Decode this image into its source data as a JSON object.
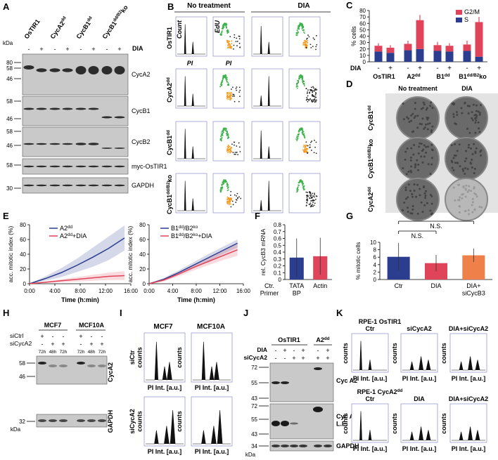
{
  "panels": {
    "a": {
      "letter": "A",
      "kda": "kDa",
      "dia": "DIA",
      "lanes": [
        "OsTIR1",
        {
          "parts": [
            "CycA2",
            "dd"
          ]
        },
        {
          "parts": [
            "CycB1",
            "dd"
          ]
        },
        {
          "parts": [
            "CycB1",
            "dd/B2",
            "ko"
          ]
        }
      ],
      "signs": [
        "-",
        "+",
        "-",
        "+",
        "-",
        "+",
        "-",
        "+"
      ],
      "blots": [
        {
          "label": "CycA2",
          "markers": [
            80,
            58,
            46
          ]
        },
        {
          "label": "CycB1",
          "markers": [
            58,
            46
          ]
        },
        {
          "label": "CycB2",
          "markers": [
            58,
            46
          ]
        },
        {
          "label": "myc-OsTIR1",
          "markers": [
            58
          ]
        },
        {
          "label": "GAPDH",
          "markers": [
            30
          ]
        }
      ]
    },
    "b": {
      "letter": "B",
      "columns": [
        "No treatment",
        "DIA"
      ],
      "rows": [
        "OsTIR1",
        {
          "parts": [
            "CycA2",
            "dd"
          ]
        },
        {
          "parts": [
            "CycB1",
            "dd"
          ]
        },
        {
          "parts": [
            "CycB1",
            "dd/B2",
            "ko"
          ]
        }
      ],
      "axes": [
        "Count",
        "EdU",
        "PI",
        "PI"
      ]
    },
    "d": {
      "letter": "D",
      "columns": [
        "No treatment",
        "DIA"
      ],
      "rows": [
        {
          "parts": [
            "CycB1",
            "dd"
          ]
        },
        {
          "parts": [
            "CycB1",
            "dd/B2",
            "ko"
          ]
        },
        {
          "parts": [
            "CycA2",
            "dd"
          ]
        }
      ]
    },
    "h": {
      "letter": "H",
      "groups": [
        "MCF7",
        "MCF10A"
      ],
      "rows": [
        "siCtrl",
        "siCycA2"
      ],
      "sictrl": [
        "+",
        "-",
        "-",
        "+",
        "-",
        "-"
      ],
      "sicyca2": [
        "-",
        "+",
        "+",
        "-",
        "+",
        "+"
      ],
      "times": [
        "72h",
        "48h",
        "72h",
        "72h",
        "48h",
        "72h"
      ],
      "markers": [
        58,
        46,
        32
      ],
      "kda": "kDa",
      "labels": [
        "CycA2",
        "GAPDH"
      ]
    },
    "i": {
      "letter": "I",
      "columns": [
        "MCF7",
        "MCF10A"
      ],
      "ylabels": [
        [
          "siCtr",
          "counts"
        ],
        "counts",
        [
          "siCycA2",
          "counts"
        ],
        "counts"
      ],
      "xlabels": [
        "PI Int. [a.u.]",
        "PI Int. [a.u.]",
        "PI Int. [a.u.]",
        "PI Int. [a.u.]"
      ]
    },
    "j": {
      "letter": "J",
      "groups": [
        "OsTIR1",
        {
          "parts": [
            "A2",
            "dd"
          ]
        }
      ],
      "rows": [
        "DIA",
        "siCycA2"
      ],
      "dia": [
        "-",
        "+",
        "-",
        "+",
        "-",
        "+"
      ],
      "sicyca2": [
        "-",
        "-",
        "+",
        "+",
        "+",
        "+"
      ],
      "markers": [
        72,
        55,
        43,
        72,
        55,
        43,
        34
      ],
      "kda": "kDa",
      "labels": [
        "Cyc A2",
        [
          "Cyc A2",
          "L.E."
        ],
        "GAPDH"
      ]
    },
    "k": {
      "letter": "K",
      "rows": [
        "RPE-1 OsTIR1",
        {
          "parts": [
            "RPE-1 CycA2",
            "dd"
          ]
        }
      ],
      "columns": [
        [
          "Ctr",
          "siCycA2",
          "DIA+siCycA2"
        ],
        [
          "Ctr",
          "DIA",
          "DIA+siCycA2"
        ]
      ],
      "ylabel": "counts",
      "xlabel": "PI Int. [a.u.]"
    }
  },
  "chart_data": [
    {
      "type": "bar",
      "stacked": true,
      "letter": "C",
      "ylabel": "% cells",
      "category_label": "DIA",
      "categories": [
        "-",
        "+",
        "-",
        "+",
        "-",
        "+",
        "-",
        "+"
      ],
      "groups": [
        "OsTIR1",
        {
          "parts": [
            "A2",
            "dd"
          ]
        },
        {
          "parts": [
            "B1",
            "dd"
          ]
        },
        {
          "parts": [
            "B1",
            "dd/B2",
            "ko"
          ]
        }
      ],
      "series": [
        {
          "name": "S",
          "color": "#2a3d8f",
          "values": [
            16,
            14,
            18,
            20,
            17,
            16,
            17,
            8
          ]
        },
        {
          "name": "G2/M",
          "color": "#e0445a",
          "values": [
            9,
            8,
            10,
            45,
            9,
            9,
            10,
            54
          ],
          "errors": [
            4,
            4,
            5,
            8,
            5,
            4,
            6,
            8
          ]
        }
      ],
      "ylim": [
        0,
        80
      ],
      "yticks": [
        0,
        10,
        20,
        30,
        40,
        50,
        60,
        70,
        80
      ],
      "legend": "top-right"
    },
    {
      "type": "line",
      "letter": "E",
      "ylabel": "acc. mitotic index (%)",
      "xlabel": "Time (h:min)",
      "x": [
        0,
        150,
        300,
        450,
        600,
        750,
        900
      ],
      "xlim": [
        0,
        960
      ],
      "xticks": [
        {
          "value": 0,
          "label": "0:00"
        },
        {
          "value": 240,
          "label": "4:00"
        },
        {
          "value": 480,
          "label": "8:00"
        },
        {
          "value": 720,
          "label": "12:00"
        },
        {
          "value": 960,
          "label": "16:00"
        }
      ],
      "ylim": [
        0,
        80
      ],
      "yticks": [
        0,
        20,
        40,
        60,
        80
      ],
      "series": [
        {
          "name": {
            "parts": [
              "A2",
              "dd"
            ]
          },
          "color": "#2a3d8f",
          "values": [
            0,
            7,
            15,
            25,
            36,
            48,
            62
          ],
          "lower": [
            0,
            4,
            9,
            16,
            23,
            32,
            45
          ],
          "upper": [
            0,
            10,
            21,
            34,
            49,
            64,
            79
          ]
        },
        {
          "name": {
            "parts": [
              "A2",
              "dd",
              "+DIA"
            ]
          },
          "color": "#e0445a",
          "values": [
            0,
            2,
            4,
            6,
            8,
            10,
            11
          ],
          "lower": [
            0,
            1,
            2,
            3,
            4,
            5,
            5
          ],
          "upper": [
            0,
            3,
            6,
            9,
            12,
            15,
            17
          ]
        }
      ]
    },
    {
      "type": "line",
      "ylabel": "acc. mitotic index (%)",
      "xlabel": "Time (h:min)",
      "x": [
        0,
        150,
        300,
        450,
        600,
        750,
        900
      ],
      "xlim": [
        0,
        960
      ],
      "xticks": [
        {
          "value": 0,
          "label": "0:00"
        },
        {
          "value": 240,
          "label": "4:00"
        },
        {
          "value": 480,
          "label": "8:00"
        },
        {
          "value": 720,
          "label": "12:00"
        },
        {
          "value": 960,
          "label": "16:00"
        }
      ],
      "ylim": [
        0,
        80
      ],
      "yticks": [
        0,
        20,
        40,
        60,
        80
      ],
      "series": [
        {
          "name": {
            "parts": [
              "B1",
              "dd",
              "/B2",
              "ko"
            ]
          },
          "color": "#2a3d8f",
          "values": [
            0,
            6,
            15,
            25,
            35,
            45,
            55
          ],
          "lower": [
            0,
            4,
            12,
            21,
            30,
            40,
            49
          ],
          "upper": [
            0,
            8,
            18,
            29,
            40,
            50,
            60
          ]
        },
        {
          "name": {
            "parts": [
              "B1",
              "dd",
              "/B2",
              "ko",
              "+DIA"
            ]
          },
          "color": "#e0445a",
          "values": [
            0,
            5,
            13,
            22,
            30,
            38,
            46
          ],
          "lower": [
            0,
            3,
            10,
            18,
            25,
            32,
            38
          ],
          "upper": [
            0,
            7,
            16,
            26,
            35,
            44,
            54
          ]
        }
      ]
    },
    {
      "type": "bar",
      "letter": "F",
      "ylabel": "rel. CycB3 mRNA",
      "note": [
        "Ctr.",
        "Primer"
      ],
      "categories": [
        [
          "TATA",
          "BP"
        ],
        "Actin"
      ],
      "values": [
        0.32,
        0.34
      ],
      "errors": [
        0.28,
        0.27
      ],
      "colors": [
        "#2a3d8f",
        "#e0445a"
      ],
      "ylim": [
        0,
        0.8
      ],
      "yticks": [
        0,
        0.1,
        0.2,
        0.3,
        0.4,
        0.5,
        0.6,
        0.7,
        0.8
      ]
    },
    {
      "type": "bar",
      "letter": "G",
      "ylabel": "% mitotic cells",
      "categories": [
        "Ctr",
        "DIA",
        [
          "DIA+",
          "siCycB3"
        ]
      ],
      "values": [
        6.1,
        4.4,
        6.5
      ],
      "errors": [
        3.7,
        2.2,
        1.8
      ],
      "colors": [
        "#2a3d8f",
        "#e0445a",
        "#f0804a"
      ],
      "ylim": [
        0,
        10
      ],
      "yticks": [
        0,
        2,
        4,
        6,
        8,
        10
      ],
      "annotations": [
        "N.S.",
        "N.S."
      ]
    }
  ]
}
